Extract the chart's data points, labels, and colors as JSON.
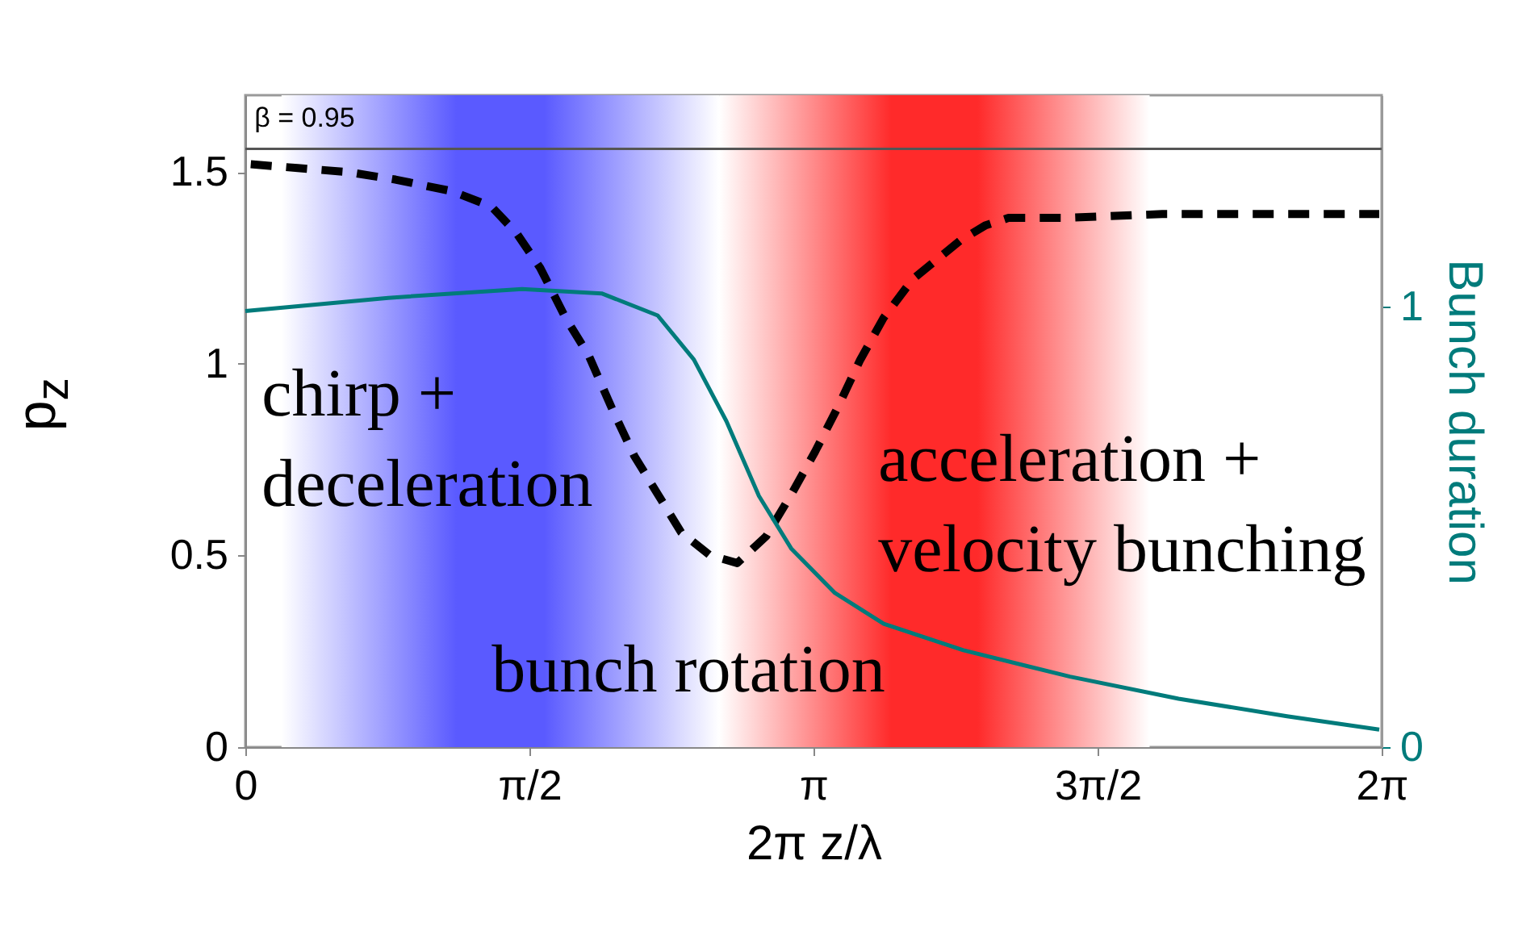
{
  "chart_data": {
    "type": "line",
    "xlabel": "2π z/λ",
    "ylabel": "p$_{z}$",
    "y2label": "Bunch duration",
    "xlim": [
      0,
      6.2832
    ],
    "xticks": [
      0,
      {
        "value": 1.5708,
        "label": "π/2"
      },
      {
        "value": 3.1416,
        "label": "π"
      },
      {
        "value": 4.7124,
        "label": "3π/2"
      },
      {
        "value": 6.2832,
        "label": "2π"
      }
    ],
    "ylim": [
      0,
      1.7
    ],
    "yticks": [
      0,
      0.5,
      1,
      1.5
    ],
    "y2lim": [
      0,
      1.48
    ],
    "y2ticks": [
      0,
      1
    ],
    "grid": false,
    "series": [
      {
        "type": "line",
        "color": "#000000",
        "line_style": "dashed",
        "x": [
          0.03,
          0.29,
          0.56,
          0.83,
          1.14,
          1.36,
          1.5,
          1.63,
          1.77,
          1.9,
          2.03,
          2.15,
          2.28,
          2.41,
          2.57,
          2.72,
          2.88,
          3.02,
          3.15,
          3.28,
          3.4,
          3.53,
          3.69,
          3.82,
          3.95,
          4.09,
          4.22,
          4.53,
          5.07,
          5.69,
          6.27
        ],
        "values": [
          1.52,
          1.51,
          1.5,
          1.48,
          1.45,
          1.41,
          1.34,
          1.25,
          1.12,
          1.02,
          0.88,
          0.76,
          0.66,
          0.56,
          0.5,
          0.48,
          0.55,
          0.66,
          0.77,
          0.89,
          1.01,
          1.12,
          1.22,
          1.27,
          1.32,
          1.36,
          1.38,
          1.38,
          1.39,
          1.39,
          1.39
        ]
      },
      {
        "type": "line",
        "axis": "y2",
        "color": "#007b7b",
        "line_style": "solid",
        "x": [
          0,
          0.79,
          1.53,
          1.97,
          2.28,
          2.48,
          2.66,
          2.84,
          3.02,
          3.26,
          3.53,
          3.97,
          4.56,
          5.16,
          5.76,
          6.27
        ],
        "values": [
          0.99,
          1.02,
          1.04,
          1.03,
          0.98,
          0.88,
          0.74,
          0.57,
          0.45,
          0.35,
          0.28,
          0.22,
          0.16,
          0.11,
          0.07,
          0.04
        ]
      }
    ],
    "ref_lines": [
      {
        "axis": "y",
        "value": 1.56,
        "color": "#555555"
      }
    ],
    "bands": [
      {
        "axis": "x",
        "from": 0.2,
        "to": 2.62,
        "color": "#5a5aff"
      },
      {
        "axis": "x",
        "from": 2.62,
        "to": 5.0,
        "color": "#ff2a2a"
      }
    ],
    "annotations": [
      "chirp +\ndeceleration",
      "bunch rotation",
      "acceleration +\nvelocity bunching",
      "β = 0.95"
    ]
  }
}
